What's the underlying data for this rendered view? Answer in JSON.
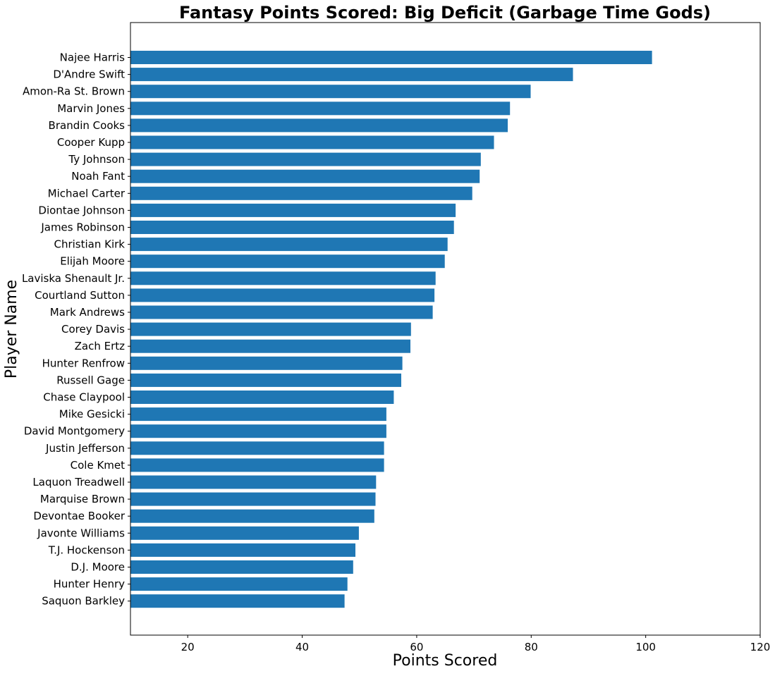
{
  "chart_data": {
    "type": "bar",
    "orientation": "horizontal",
    "title": "Fantasy Points Scored: Big Deficit (Garbage Time Gods)",
    "xlabel": "Points Scored",
    "ylabel": "Player Name",
    "xlim": [
      10,
      120
    ],
    "xticks": [
      "20",
      "40",
      "60",
      "80",
      "100",
      "120"
    ],
    "grid": false,
    "bar_color": "#1f77b4",
    "categories": [
      "Najee Harris",
      "D'Andre Swift",
      "Amon-Ra St. Brown",
      "Marvin Jones",
      "Brandin Cooks",
      "Cooper Kupp",
      "Ty Johnson",
      "Noah Fant",
      "Michael Carter",
      "Diontae Johnson",
      "James Robinson",
      "Christian Kirk",
      "Elijah Moore",
      "Laviska Shenault Jr.",
      "Courtland Sutton",
      "Mark Andrews",
      "Corey Davis",
      "Zach Ertz",
      "Hunter Renfrow",
      "Russell Gage",
      "Chase Claypool",
      "Mike Gesicki",
      "David Montgomery",
      "Justin Jefferson",
      "Cole Kmet",
      "Laquon Treadwell",
      "Marquise Brown",
      "Devontae Booker",
      "Javonte Williams",
      "T.J. Hockenson",
      "D.J. Moore",
      "Hunter Henry",
      "Saquon Barkley"
    ],
    "values": [
      101.1,
      87.3,
      79.9,
      76.3,
      75.9,
      73.5,
      71.2,
      71.0,
      69.7,
      66.8,
      66.5,
      65.4,
      64.9,
      63.3,
      63.1,
      62.8,
      59.0,
      58.9,
      57.5,
      57.3,
      56.0,
      54.7,
      54.7,
      54.3,
      54.3,
      52.9,
      52.8,
      52.6,
      49.9,
      49.3,
      48.9,
      47.9,
      47.4
    ]
  }
}
